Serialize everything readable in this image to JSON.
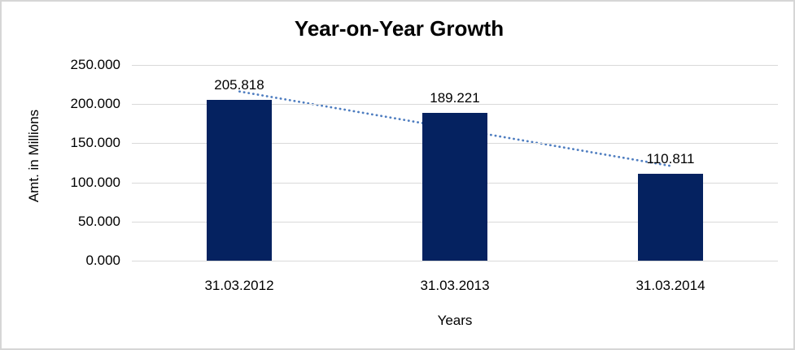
{
  "chart_data": {
    "type": "bar",
    "title": "Year-on-Year Growth",
    "xlabel": "Years",
    "ylabel": "Amt. in Millions",
    "categories": [
      "31.03.2012",
      "31.03.2013",
      "31.03.2014"
    ],
    "series": [
      {
        "name": "Amt. in Millions",
        "values": [
          205.818,
          189.221,
          110.811
        ]
      }
    ],
    "value_labels": [
      "205.818",
      "189.221",
      "110.811"
    ],
    "ylim": [
      0,
      250
    ],
    "yticks": [
      0,
      50,
      100,
      150,
      200,
      250
    ],
    "ytick_labels": [
      "0.000",
      "50.000",
      "100.000",
      "150.000",
      "200.000",
      "250.000"
    ],
    "grid": "horizontal",
    "legend_position": "none",
    "trendline": {
      "type": "linear",
      "style": "dotted"
    },
    "colors": {
      "bar": "#052260",
      "trendline": "#4e7dc0",
      "gridline": "#d9d9d9",
      "text": "#000000",
      "frame_border": "#d6d6d6",
      "background": "#ffffff"
    }
  }
}
